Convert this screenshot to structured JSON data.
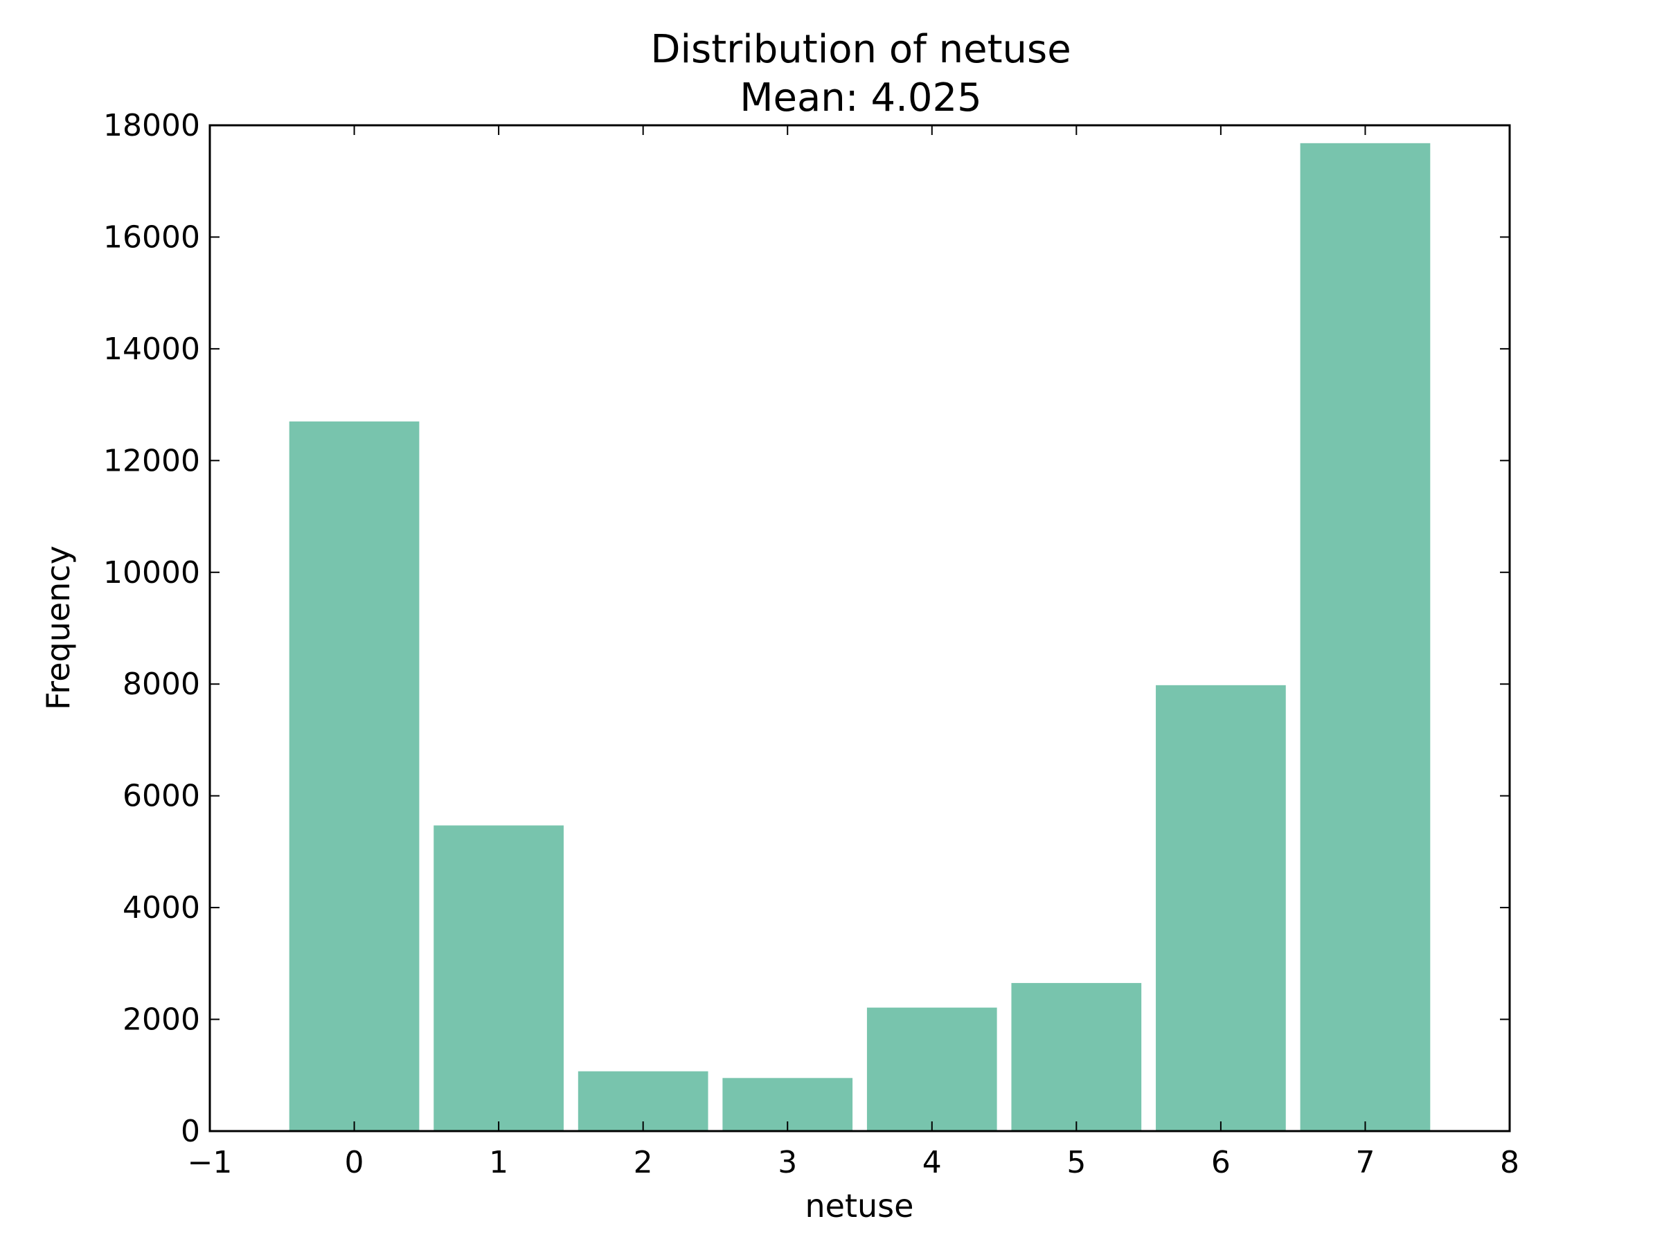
{
  "chart_data": {
    "type": "bar",
    "title": "Distribution of netuse",
    "subtitle": "Mean: 4.025",
    "xlabel": "netuse",
    "ylabel": "Frequency",
    "categories": [
      0,
      1,
      2,
      3,
      4,
      5,
      6,
      7
    ],
    "values": [
      12700,
      5470,
      1070,
      950,
      2210,
      2650,
      7980,
      17680
    ],
    "xlim": [
      -1,
      8
    ],
    "ylim": [
      0,
      18000
    ],
    "xticks": [
      "−1",
      "0",
      "1",
      "2",
      "3",
      "4",
      "5",
      "6",
      "7",
      "8"
    ],
    "yticks": [
      "0",
      "2000",
      "4000",
      "6000",
      "8000",
      "10000",
      "12000",
      "14000",
      "16000",
      "18000"
    ],
    "bar_color": "#78c4ad",
    "grid": false,
    "legend": "none"
  }
}
